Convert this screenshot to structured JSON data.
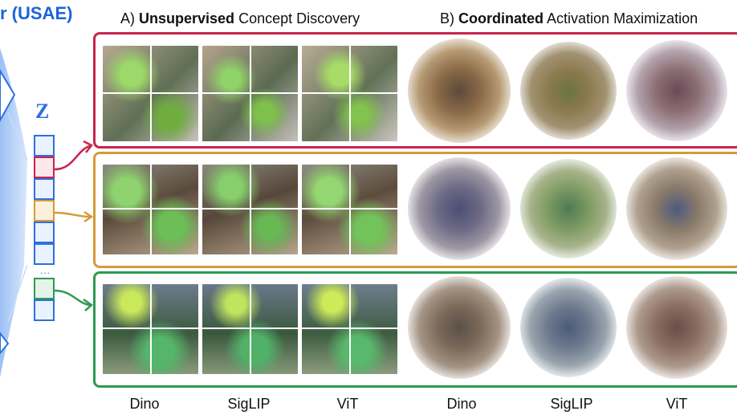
{
  "header": {
    "left_title": "r (USAE)",
    "section_a": {
      "prefix": "A) ",
      "bold": "Unsupervised",
      "rest": " Concept Discovery"
    },
    "section_b": {
      "prefix": "B) ",
      "bold": "Coordinated",
      "rest": " Activation Maximization"
    }
  },
  "latent": {
    "label": "Z",
    "ellipsis": "..."
  },
  "column_labels": {
    "a": [
      "Dino",
      "SigLIP",
      "ViT"
    ],
    "b": [
      "Dino",
      "SigLIP",
      "ViT"
    ]
  },
  "colors": {
    "blue": "#2f6fe0",
    "row1": "#c8254c",
    "row2": "#d69a38",
    "row3": "#2e9a52"
  }
}
